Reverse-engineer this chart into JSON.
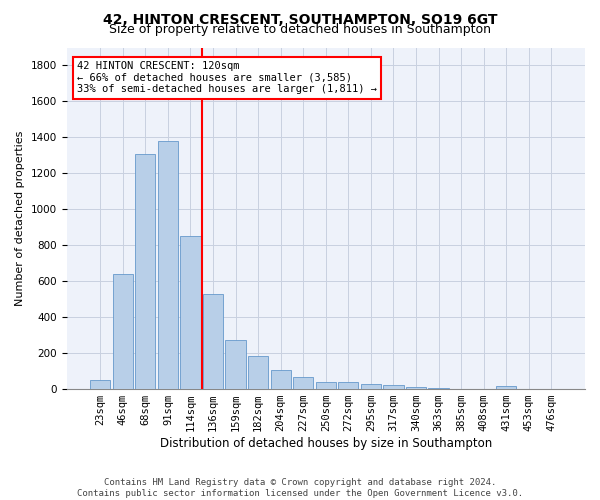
{
  "title": "42, HINTON CRESCENT, SOUTHAMPTON, SO19 6GT",
  "subtitle": "Size of property relative to detached houses in Southampton",
  "xlabel": "Distribution of detached houses by size in Southampton",
  "ylabel": "Number of detached properties",
  "categories": [
    "23sqm",
    "46sqm",
    "68sqm",
    "91sqm",
    "114sqm",
    "136sqm",
    "159sqm",
    "182sqm",
    "204sqm",
    "227sqm",
    "250sqm",
    "272sqm",
    "295sqm",
    "317sqm",
    "340sqm",
    "363sqm",
    "385sqm",
    "408sqm",
    "431sqm",
    "453sqm",
    "476sqm"
  ],
  "values": [
    50,
    640,
    1310,
    1380,
    850,
    530,
    275,
    185,
    105,
    65,
    40,
    40,
    30,
    20,
    10,
    5,
    3,
    2,
    15,
    0,
    0
  ],
  "bar_color": "#b8cfe8",
  "bar_edge_color": "#6699cc",
  "vline_x": 4.5,
  "vline_color": "red",
  "annotation_line1": "42 HINTON CRESCENT: 120sqm",
  "annotation_line2": "← 66% of detached houses are smaller (3,585)",
  "annotation_line3": "33% of semi-detached houses are larger (1,811) →",
  "ylim": [
    0,
    1900
  ],
  "yticks": [
    0,
    200,
    400,
    600,
    800,
    1000,
    1200,
    1400,
    1600,
    1800
  ],
  "background_color": "#eef2fa",
  "grid_color": "#c8d0e0",
  "footer_line1": "Contains HM Land Registry data © Crown copyright and database right 2024.",
  "footer_line2": "Contains public sector information licensed under the Open Government Licence v3.0.",
  "title_fontsize": 10,
  "subtitle_fontsize": 9,
  "ylabel_fontsize": 8,
  "xlabel_fontsize": 8.5,
  "tick_fontsize": 7.5,
  "annotation_fontsize": 7.5,
  "footer_fontsize": 6.5
}
